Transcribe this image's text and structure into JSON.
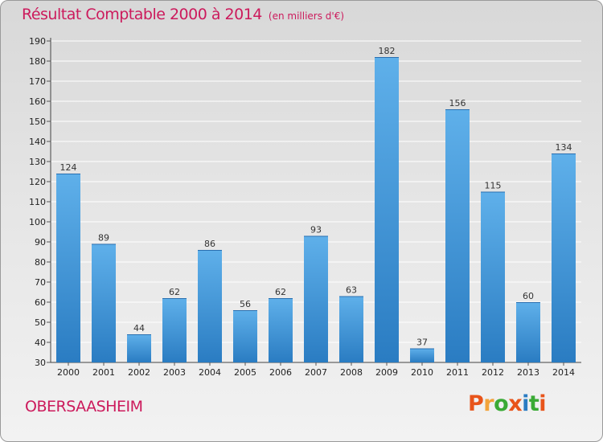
{
  "header": {
    "title": "Résultat Comptable 2000 à 2014",
    "unit_note": "(en milliers d'€)"
  },
  "footer": {
    "commune": "OBERSAASHEIM",
    "logo_text": "Proxiti"
  },
  "colors": {
    "title": "#cc1a5c",
    "bar_top": "#5fb0ea",
    "bar_bottom": "#2a7cc2",
    "grid": "#ffffff",
    "logo": [
      "#e8541a",
      "#f2a33a",
      "#3aaa35",
      "#e8541a",
      "#2a7cc2",
      "#3aaa35",
      "#e8541a"
    ]
  },
  "chart_data": {
    "type": "bar",
    "title": "Résultat Comptable 2000 à 2014",
    "subtitle": "(en milliers d'€)",
    "categories": [
      "2000",
      "2001",
      "2002",
      "2003",
      "2004",
      "2005",
      "2006",
      "2007",
      "2008",
      "2009",
      "2010",
      "2011",
      "2012",
      "2013",
      "2014"
    ],
    "values": [
      124,
      89,
      44,
      62,
      86,
      56,
      62,
      93,
      63,
      182,
      37,
      156,
      115,
      60,
      134
    ],
    "y_ticks": [
      30,
      40,
      50,
      60,
      70,
      80,
      90,
      100,
      110,
      120,
      130,
      140,
      150,
      160,
      170,
      180,
      190
    ],
    "ylim": [
      30,
      190
    ],
    "grid": true,
    "xlabel": "",
    "ylabel": ""
  }
}
